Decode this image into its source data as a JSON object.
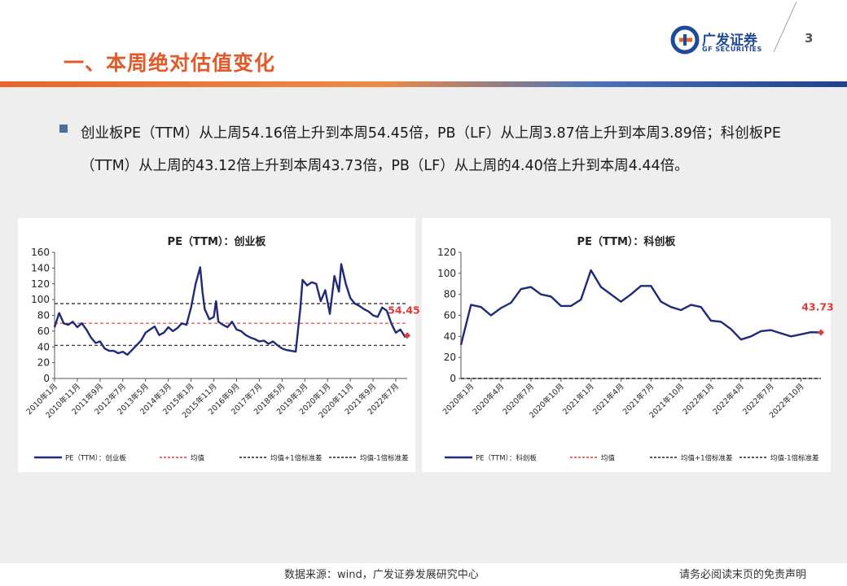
{
  "header": {
    "title": "一、本周绝对估值变化",
    "logo_cn": "广发证券",
    "logo_en": "GF SECURITIES",
    "page_number": "3",
    "colors": {
      "title": "#e05a2a",
      "brand_blue": "#1f4a9c",
      "bar_orange": "#e8632c",
      "bar_blue": "#1f3f8f"
    }
  },
  "bullet": {
    "text": "创业板PE（TTM）从上周54.16倍上升到本周54.45倍，PB（LF）从上周3.87倍上升到本周3.89倍；科创板PE（TTM）从上周的43.12倍上升到本周43.73倍，PB（LF）从上周的4.40倍上升到本周4.44倍。"
  },
  "footer": {
    "source": "数据来源：wind，广发证券发展研究中心",
    "disclaimer": "请务必阅读末页的免责声明"
  },
  "chart_data": [
    {
      "type": "line",
      "title": "PE（TTM）：创业板",
      "ylim": [
        0,
        160
      ],
      "yticks": [
        0,
        20,
        40,
        60,
        80,
        100,
        120,
        140,
        160
      ],
      "x_range": [
        "2010-01",
        "2022-12"
      ],
      "tick_labels": [
        "2010年1月",
        "2010年11月",
        "2011年9月",
        "2012年7月",
        "2013年5月",
        "2014年3月",
        "2015年1月",
        "2015年11月",
        "2016年9月",
        "2017年7月",
        "2018年5月",
        "2019年3月",
        "2020年1月",
        "2020年11月",
        "2021年9月",
        "2022年7月"
      ],
      "series": [
        {
          "name": "PE（TTM）：创业板",
          "color": "#1f2a7a",
          "style": "solid",
          "x": [
            "2010-01",
            "2010-03",
            "2010-05",
            "2010-07",
            "2010-09",
            "2010-11",
            "2011-01",
            "2011-03",
            "2011-05",
            "2011-07",
            "2011-09",
            "2011-11",
            "2012-01",
            "2012-03",
            "2012-05",
            "2012-07",
            "2012-09",
            "2012-11",
            "2013-01",
            "2013-03",
            "2013-05",
            "2013-07",
            "2013-09",
            "2013-11",
            "2014-01",
            "2014-03",
            "2014-05",
            "2014-07",
            "2014-09",
            "2014-11",
            "2015-01",
            "2015-03",
            "2015-05",
            "2015-06",
            "2015-07",
            "2015-09",
            "2015-11",
            "2015-12",
            "2016-01",
            "2016-03",
            "2016-05",
            "2016-07",
            "2016-09",
            "2016-11",
            "2017-01",
            "2017-03",
            "2017-05",
            "2017-07",
            "2017-09",
            "2017-11",
            "2018-01",
            "2018-03",
            "2018-05",
            "2018-07",
            "2018-09",
            "2018-11",
            "2019-01",
            "2019-02",
            "2019-04",
            "2019-06",
            "2019-08",
            "2019-10",
            "2019-12",
            "2020-02",
            "2020-04",
            "2020-06",
            "2020-07",
            "2020-09",
            "2020-11",
            "2021-01",
            "2021-03",
            "2021-05",
            "2021-07",
            "2021-09",
            "2021-11",
            "2022-01",
            "2022-03",
            "2022-05",
            "2022-07",
            "2022-09",
            "2022-11",
            "2022-12"
          ],
          "y": [
            65,
            83,
            70,
            68,
            72,
            65,
            70,
            62,
            52,
            45,
            47,
            38,
            35,
            35,
            32,
            34,
            30,
            36,
            42,
            48,
            58,
            62,
            66,
            55,
            58,
            65,
            60,
            64,
            70,
            68,
            90,
            120,
            141,
            110,
            88,
            75,
            78,
            98,
            72,
            68,
            65,
            72,
            62,
            60,
            55,
            52,
            50,
            47,
            48,
            44,
            47,
            42,
            38,
            36,
            35,
            34,
            88,
            125,
            118,
            122,
            120,
            98,
            112,
            82,
            130,
            110,
            145,
            120,
            102,
            95,
            92,
            88,
            85,
            80,
            78,
            90,
            86,
            70,
            58,
            62,
            53,
            54.45
          ]
        },
        {
          "name": "均值",
          "color": "#e03a3a",
          "style": "dashed",
          "value": 70
        },
        {
          "name": "均值+1倍标准差",
          "color": "#222222",
          "style": "dashed",
          "value": 95
        },
        {
          "name": "均值-1倍标准差",
          "color": "#222222",
          "style": "dashed",
          "value": 42
        }
      ],
      "annotation": {
        "text": "54.45",
        "value": 54.45,
        "color": "#e03a3a"
      },
      "legend_position": "bottom"
    },
    {
      "type": "line",
      "title": "PE（TTM）：科创板",
      "ylim": [
        0,
        120
      ],
      "yticks": [
        0,
        20,
        40,
        60,
        80,
        100,
        120
      ],
      "x_range": [
        "2019-12",
        "2022-12"
      ],
      "tick_labels": [
        "2020年1月",
        "2020年4月",
        "2020年7月",
        "2020年10月",
        "2021年1月",
        "2021年4月",
        "2021年7月",
        "2021年10月",
        "2022年1月",
        "2022年4月",
        "2022年7月",
        "2022年10月"
      ],
      "series": [
        {
          "name": "PE（TTM）：科创板",
          "color": "#1f2a7a",
          "style": "solid",
          "x": [
            "2019-12",
            "2020-01",
            "2020-02",
            "2020-03",
            "2020-04",
            "2020-05",
            "2020-06",
            "2020-07",
            "2020-08",
            "2020-09",
            "2020-10",
            "2020-11",
            "2020-12",
            "2021-01",
            "2021-02",
            "2021-03",
            "2021-04",
            "2021-05",
            "2021-06",
            "2021-07",
            "2021-08",
            "2021-09",
            "2021-10",
            "2021-11",
            "2021-12",
            "2022-01",
            "2022-02",
            "2022-03",
            "2022-04",
            "2022-05",
            "2022-06",
            "2022-07",
            "2022-08",
            "2022-09",
            "2022-10",
            "2022-11",
            "2022-12"
          ],
          "y": [
            32,
            70,
            68,
            60,
            67,
            72,
            85,
            87,
            80,
            78,
            69,
            69,
            75,
            103,
            87,
            80,
            73,
            80,
            88,
            88,
            73,
            68,
            65,
            70,
            68,
            55,
            54,
            47,
            37,
            40,
            45,
            46,
            43,
            40,
            42,
            44,
            43.73
          ]
        },
        {
          "name": "均值",
          "color": "#e03a3a",
          "style": "dashed",
          "value": 0
        },
        {
          "name": "均值+1倍标准差",
          "color": "#222222",
          "style": "dashed",
          "value": 0
        },
        {
          "name": "均值-1倍标准差",
          "color": "#222222",
          "style": "dashed",
          "value": 0
        }
      ],
      "annotation": {
        "text": "43.73",
        "value": 43.73,
        "color": "#e03a3a"
      },
      "legend_position": "bottom"
    }
  ]
}
